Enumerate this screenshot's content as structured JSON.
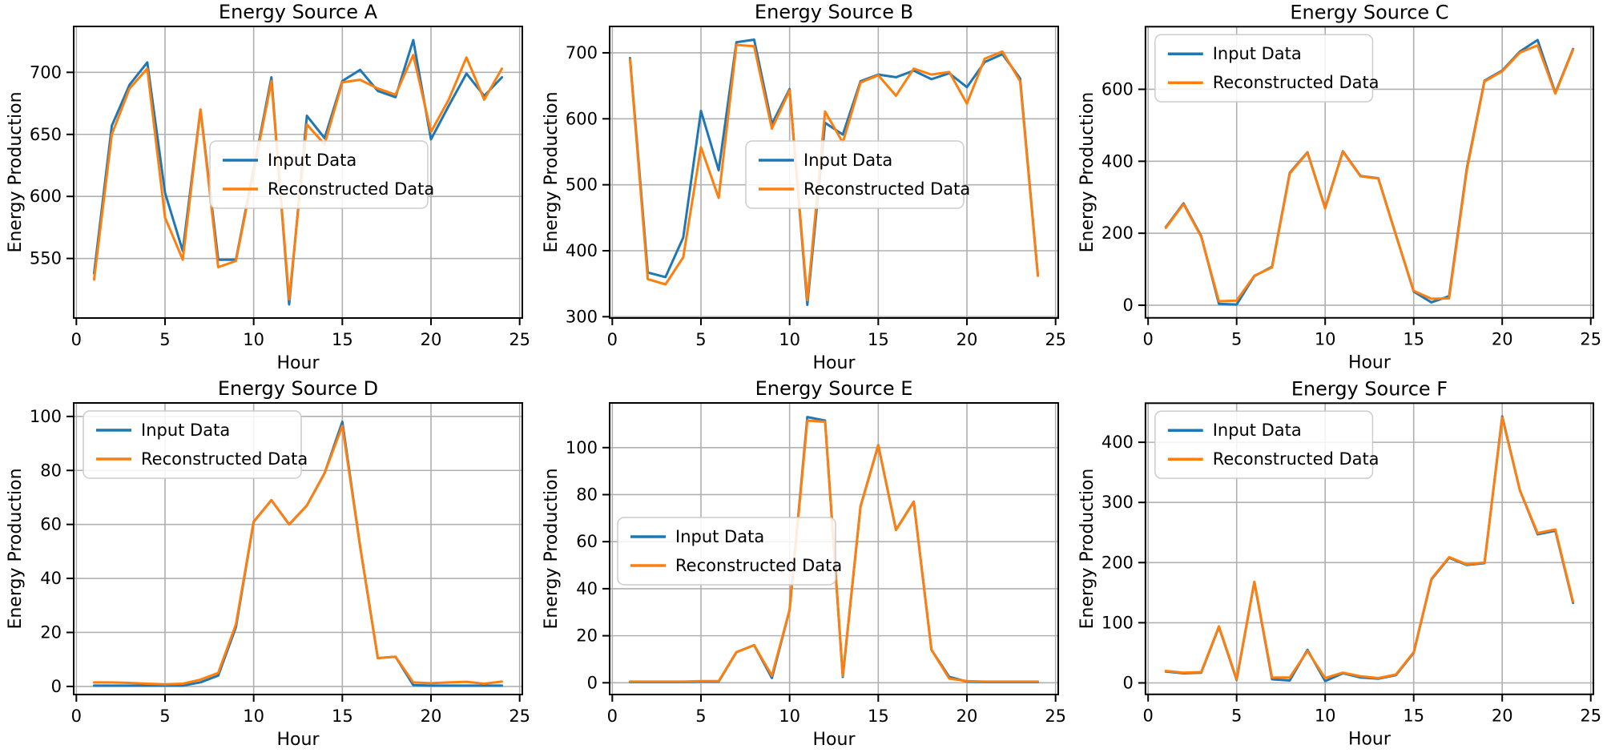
{
  "figure": {
    "background": "#ffffff",
    "grid_color": "#b0b0b0",
    "spine_color": "#000000",
    "text_color": "#000000",
    "xlabel": "Hour",
    "ylabel": "Energy Production",
    "x_ticks": [
      0,
      5,
      10,
      15,
      20,
      25
    ],
    "x_range": [
      -0.15,
      25.15
    ],
    "legend": {
      "input_label": "Input Data",
      "reconstructed_label": "Reconstructed Data",
      "input_color": "#1f77b4",
      "reconstructed_color": "#ff7f0e"
    }
  },
  "chart_data": [
    {
      "type": "line",
      "title": "Energy Source A",
      "xlabel": "Hour",
      "ylabel": "Energy Production",
      "x": [
        1,
        2,
        3,
        4,
        5,
        6,
        7,
        8,
        9,
        10,
        11,
        12,
        13,
        14,
        15,
        16,
        17,
        18,
        19,
        20,
        21,
        22,
        23,
        24
      ],
      "ylim": [
        502,
        737
      ],
      "yticks": [
        550,
        600,
        650,
        700
      ],
      "legend_pos": "center",
      "grid": true,
      "series": [
        {
          "name": "Input Data",
          "color": "#1f77b4",
          "values": [
            538,
            657,
            690,
            708,
            603,
            556,
            670,
            549,
            549,
            622,
            696,
            513,
            665,
            647,
            693,
            702,
            685,
            680,
            726,
            646,
            673,
            699,
            681,
            696
          ]
        },
        {
          "name": "Reconstructed Data",
          "color": "#ff7f0e",
          "values": [
            533,
            650,
            687,
            703,
            583,
            549,
            670,
            543,
            548,
            620,
            693,
            517,
            658,
            642,
            692,
            694,
            687,
            682,
            714,
            652,
            678,
            712,
            678,
            703
          ]
        }
      ]
    },
    {
      "type": "line",
      "title": "Energy Source B",
      "xlabel": "Hour",
      "ylabel": "Energy Production",
      "x": [
        1,
        2,
        3,
        4,
        5,
        6,
        7,
        8,
        9,
        10,
        11,
        12,
        13,
        14,
        15,
        16,
        17,
        18,
        19,
        20,
        21,
        22,
        23,
        24
      ],
      "ylim": [
        298,
        740
      ],
      "yticks": [
        300,
        400,
        500,
        600,
        700
      ],
      "legend_pos": "center",
      "grid": true,
      "series": [
        {
          "name": "Input Data",
          "color": "#1f77b4",
          "values": [
            692,
            367,
            360,
            420,
            612,
            522,
            716,
            720,
            592,
            645,
            318,
            594,
            576,
            657,
            667,
            663,
            673,
            660,
            669,
            648,
            686,
            698,
            661,
            363
          ]
        },
        {
          "name": "Reconstructed Data",
          "color": "#ff7f0e",
          "values": [
            690,
            357,
            349,
            390,
            557,
            480,
            712,
            710,
            585,
            643,
            325,
            611,
            564,
            655,
            666,
            635,
            676,
            667,
            671,
            623,
            691,
            702,
            657,
            362
          ]
        }
      ]
    },
    {
      "type": "line",
      "title": "Energy Source C",
      "xlabel": "Hour",
      "ylabel": "Energy Production",
      "x": [
        1,
        2,
        3,
        4,
        5,
        6,
        7,
        8,
        9,
        10,
        11,
        12,
        13,
        14,
        15,
        16,
        17,
        18,
        19,
        20,
        21,
        22,
        23,
        24
      ],
      "ylim": [
        -35,
        774
      ],
      "yticks": [
        0,
        200,
        400,
        600
      ],
      "legend_pos": "upper-left",
      "grid": true,
      "series": [
        {
          "name": "Input Data",
          "color": "#1f77b4",
          "values": [
            217,
            283,
            192,
            4,
            2,
            81,
            107,
            368,
            425,
            270,
            428,
            359,
            353,
            195,
            38,
            8,
            25,
            380,
            624,
            652,
            705,
            737,
            590,
            712
          ]
        },
        {
          "name": "Reconstructed Data",
          "color": "#ff7f0e",
          "values": [
            215,
            281,
            190,
            11,
            13,
            82,
            105,
            366,
            424,
            269,
            427,
            358,
            352,
            194,
            40,
            18,
            19,
            375,
            622,
            650,
            702,
            722,
            588,
            710
          ]
        }
      ]
    },
    {
      "type": "line",
      "title": "Energy Source D",
      "xlabel": "Hour",
      "ylabel": "Energy Production",
      "x": [
        1,
        2,
        3,
        4,
        5,
        6,
        7,
        8,
        9,
        10,
        11,
        12,
        13,
        14,
        15,
        16,
        17,
        18,
        19,
        20,
        21,
        22,
        23,
        24
      ],
      "ylim": [
        -3,
        105
      ],
      "yticks": [
        0,
        20,
        40,
        60,
        80,
        100
      ],
      "legend_pos": "upper-left",
      "grid": true,
      "series": [
        {
          "name": "Input Data",
          "color": "#1f77b4",
          "values": [
            0.3,
            0.3,
            0.3,
            0.3,
            0.3,
            0.3,
            1.5,
            4,
            22,
            61,
            69,
            60,
            67,
            79,
            98,
            52,
            10.5,
            11,
            0.5,
            0.3,
            0.3,
            0.3,
            0.3,
            0.3
          ]
        },
        {
          "name": "Reconstructed Data",
          "color": "#ff7f0e",
          "values": [
            1.5,
            1.5,
            1.3,
            1.0,
            0.8,
            1.0,
            2.5,
            5,
            23,
            61,
            69,
            60,
            67,
            79,
            96.5,
            52,
            10.5,
            11,
            1.5,
            1.2,
            1.5,
            1.7,
            1.0,
            1.8
          ]
        }
      ]
    },
    {
      "type": "line",
      "title": "Energy Source E",
      "xlabel": "Hour",
      "ylabel": "Energy Production",
      "x": [
        1,
        2,
        3,
        4,
        5,
        6,
        7,
        8,
        9,
        10,
        11,
        12,
        13,
        14,
        15,
        16,
        17,
        18,
        19,
        20,
        21,
        22,
        23,
        24
      ],
      "ylim": [
        -5,
        119
      ],
      "yticks": [
        0,
        20,
        40,
        60,
        80,
        100
      ],
      "legend_pos": "center-left",
      "grid": true,
      "series": [
        {
          "name": "Input Data",
          "color": "#1f77b4",
          "values": [
            0.3,
            0.3,
            0.3,
            0.3,
            0.5,
            0.5,
            13,
            16,
            2,
            31,
            113,
            111.5,
            2.5,
            75,
            101,
            65,
            77,
            14,
            2.5,
            0.5,
            0.3,
            0.3,
            0.3,
            0.3
          ]
        },
        {
          "name": "Reconstructed Data",
          "color": "#ff7f0e",
          "values": [
            0.5,
            0.5,
            0.5,
            0.5,
            0.7,
            0.7,
            13,
            16,
            3,
            31,
            111.5,
            111,
            3,
            75,
            101,
            65,
            77,
            14,
            1.8,
            0.7,
            0.5,
            0.5,
            0.5,
            0.5
          ]
        }
      ]
    },
    {
      "type": "line",
      "title": "Energy Source F",
      "xlabel": "Hour",
      "ylabel": "Energy Production",
      "x": [
        1,
        2,
        3,
        4,
        5,
        6,
        7,
        8,
        9,
        10,
        11,
        12,
        13,
        14,
        15,
        16,
        17,
        18,
        19,
        20,
        21,
        22,
        23,
        24
      ],
      "ylim": [
        -19,
        465
      ],
      "yticks": [
        0,
        100,
        200,
        300,
        400
      ],
      "legend_pos": "upper-left",
      "grid": true,
      "series": [
        {
          "name": "Input Data",
          "color": "#1f77b4",
          "values": [
            19,
            16,
            17,
            93,
            5,
            168,
            6,
            4,
            55,
            3,
            16,
            9,
            7,
            13,
            50,
            172,
            208,
            196,
            199,
            443,
            320,
            247,
            253,
            133
          ]
        },
        {
          "name": "Reconstructed Data",
          "color": "#ff7f0e",
          "values": [
            20,
            17,
            18,
            94,
            6,
            168,
            9,
            9,
            53,
            8,
            17,
            11,
            8,
            14,
            51,
            173,
            209,
            197,
            200,
            441,
            320,
            249,
            255,
            135
          ]
        }
      ]
    }
  ]
}
